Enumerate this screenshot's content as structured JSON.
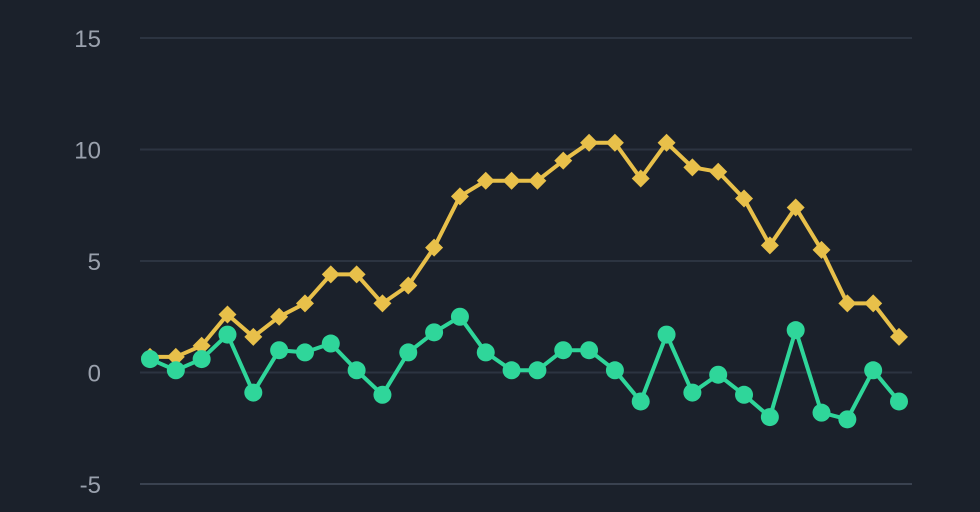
{
  "chart_data": {
    "type": "line",
    "ylim": [
      -5,
      15
    ],
    "yticks": [
      "15",
      "10",
      "5",
      "0",
      "-5"
    ],
    "ytick_values": [
      15,
      10,
      5,
      0,
      -5
    ],
    "grid": true,
    "series": [
      {
        "color": "#e8c04a",
        "marker": "diamond",
        "values": [
          0.7,
          0.7,
          1.2,
          2.6,
          1.6,
          2.5,
          3.1,
          4.4,
          4.4,
          3.1,
          3.9,
          5.6,
          7.9,
          8.6,
          8.6,
          8.6,
          9.5,
          10.3,
          10.3,
          8.7,
          10.3,
          9.2,
          9.0,
          7.8,
          5.7,
          7.4,
          5.5,
          3.1,
          3.1,
          1.6
        ]
      },
      {
        "color": "#2fd69a",
        "marker": "circle",
        "values": [
          0.6,
          0.1,
          0.6,
          1.7,
          -0.9,
          1.0,
          0.9,
          1.3,
          0.1,
          -1.0,
          0.9,
          1.8,
          2.5,
          0.9,
          0.1,
          0.1,
          1.0,
          1.0,
          0.1,
          -1.3,
          1.7,
          -0.9,
          -0.1,
          -1.0,
          -2.0,
          1.9,
          -1.8,
          -2.1,
          0.1,
          -1.3
        ]
      }
    ]
  }
}
